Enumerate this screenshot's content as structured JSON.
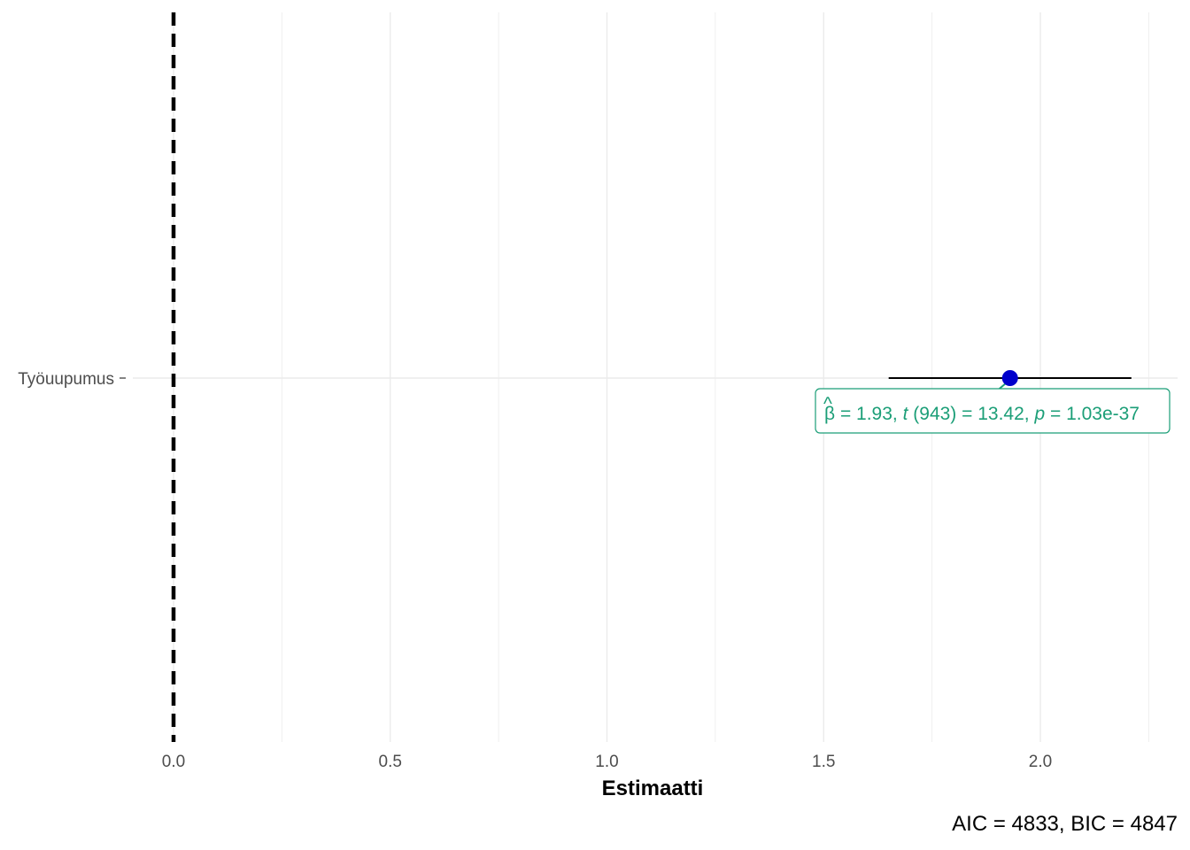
{
  "chart_data": {
    "type": "scatter",
    "xlabel": "Estimaatti",
    "ylabel": "",
    "xlim": [
      0,
      2.3
    ],
    "x_ticks": [
      0.0,
      0.5,
      1.0,
      1.5,
      2.0
    ],
    "x_tick_labels": [
      "0.0",
      "0.5",
      "1.0",
      "1.5",
      "2.0"
    ],
    "grid": true,
    "reference_line": {
      "x": 0,
      "style": "dashed",
      "color": "#000000"
    },
    "terms": [
      {
        "label": "Työuupumus",
        "estimate": 1.93,
        "conf_low": 1.65,
        "conf_high": 2.21,
        "point_color": "#0000cc",
        "label_color": "#1b9e77",
        "annotation": {
          "beta_symbol": "β",
          "hat_symbol": "^",
          "part1": "= 1.93, ",
          "t_symbol": "t",
          "part2": "(943) = 13.42, ",
          "p_symbol": "p",
          "part3": "= 1.03e-37"
        }
      }
    ],
    "caption": "AIC = 4833, BIC = 4847"
  }
}
